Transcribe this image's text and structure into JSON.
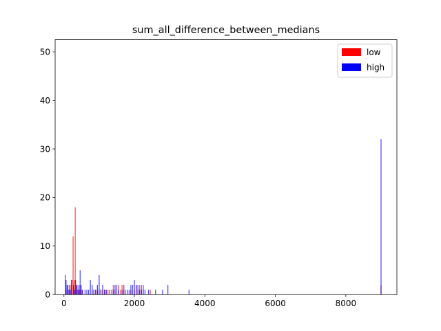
{
  "chart_data": {
    "type": "bar",
    "title": "sum_all_difference_between_medians",
    "xlabel": "",
    "ylabel": "",
    "xlim": [
      -250,
      9450
    ],
    "ylim": [
      0,
      52.5
    ],
    "xticks": [
      0,
      2000,
      4000,
      6000,
      8000
    ],
    "xtick_labels": [
      "0",
      "2000",
      "4000",
      "6000",
      "8000"
    ],
    "yticks": [
      0,
      10,
      20,
      30,
      40,
      50
    ],
    "ytick_labels": [
      "0",
      "10",
      "20",
      "30",
      "40",
      "50"
    ],
    "bin_width": 45,
    "grid": false,
    "legend_position": "top-right",
    "series": [
      {
        "name": "low",
        "color": "#ff0000",
        "opacity": 0.7,
        "x": [
          60,
          110,
          150,
          200,
          230,
          260,
          290,
          320,
          350,
          380,
          410,
          450,
          480,
          530,
          800,
          850,
          900,
          950,
          1000,
          1050,
          1100,
          1150,
          1200,
          1250,
          1350,
          1400,
          1450,
          1550,
          1600,
          1650,
          1700,
          1750,
          1900,
          2000,
          2050,
          2100,
          2150,
          2200,
          2250,
          2450,
          9000
        ],
        "values": [
          1,
          2,
          1,
          2,
          3,
          12,
          3,
          18,
          2,
          1,
          1,
          2,
          1,
          1,
          1,
          1,
          1,
          1,
          1,
          1,
          1,
          1,
          1,
          1,
          1,
          2,
          1,
          2,
          1,
          2,
          1,
          1,
          1,
          1,
          2,
          1,
          2,
          2,
          1,
          1,
          2
        ]
      },
      {
        "name": "high",
        "color": "#0000ff",
        "opacity": 0.7,
        "x": [
          40,
          60,
          90,
          120,
          150,
          180,
          210,
          270,
          300,
          330,
          360,
          400,
          430,
          460,
          490,
          520,
          600,
          650,
          700,
          750,
          800,
          850,
          900,
          950,
          1000,
          1050,
          1100,
          1150,
          1200,
          1300,
          1400,
          1450,
          1500,
          1550,
          1650,
          1700,
          1800,
          1850,
          1900,
          1950,
          2000,
          2050,
          2100,
          2150,
          2200,
          2250,
          2300,
          2400,
          2600,
          2800,
          2950,
          3550,
          9000
        ],
        "values": [
          4,
          3,
          2,
          1,
          2,
          1,
          3,
          2,
          1,
          3,
          2,
          2,
          1,
          5,
          2,
          1,
          1,
          1,
          1,
          3,
          2,
          1,
          1,
          2,
          4,
          1,
          2,
          1,
          1,
          1,
          1,
          2,
          2,
          1,
          1,
          2,
          1,
          1,
          2,
          2,
          3,
          2,
          2,
          1,
          1,
          2,
          1,
          1,
          1,
          1,
          2,
          1,
          32
        ]
      }
    ]
  }
}
